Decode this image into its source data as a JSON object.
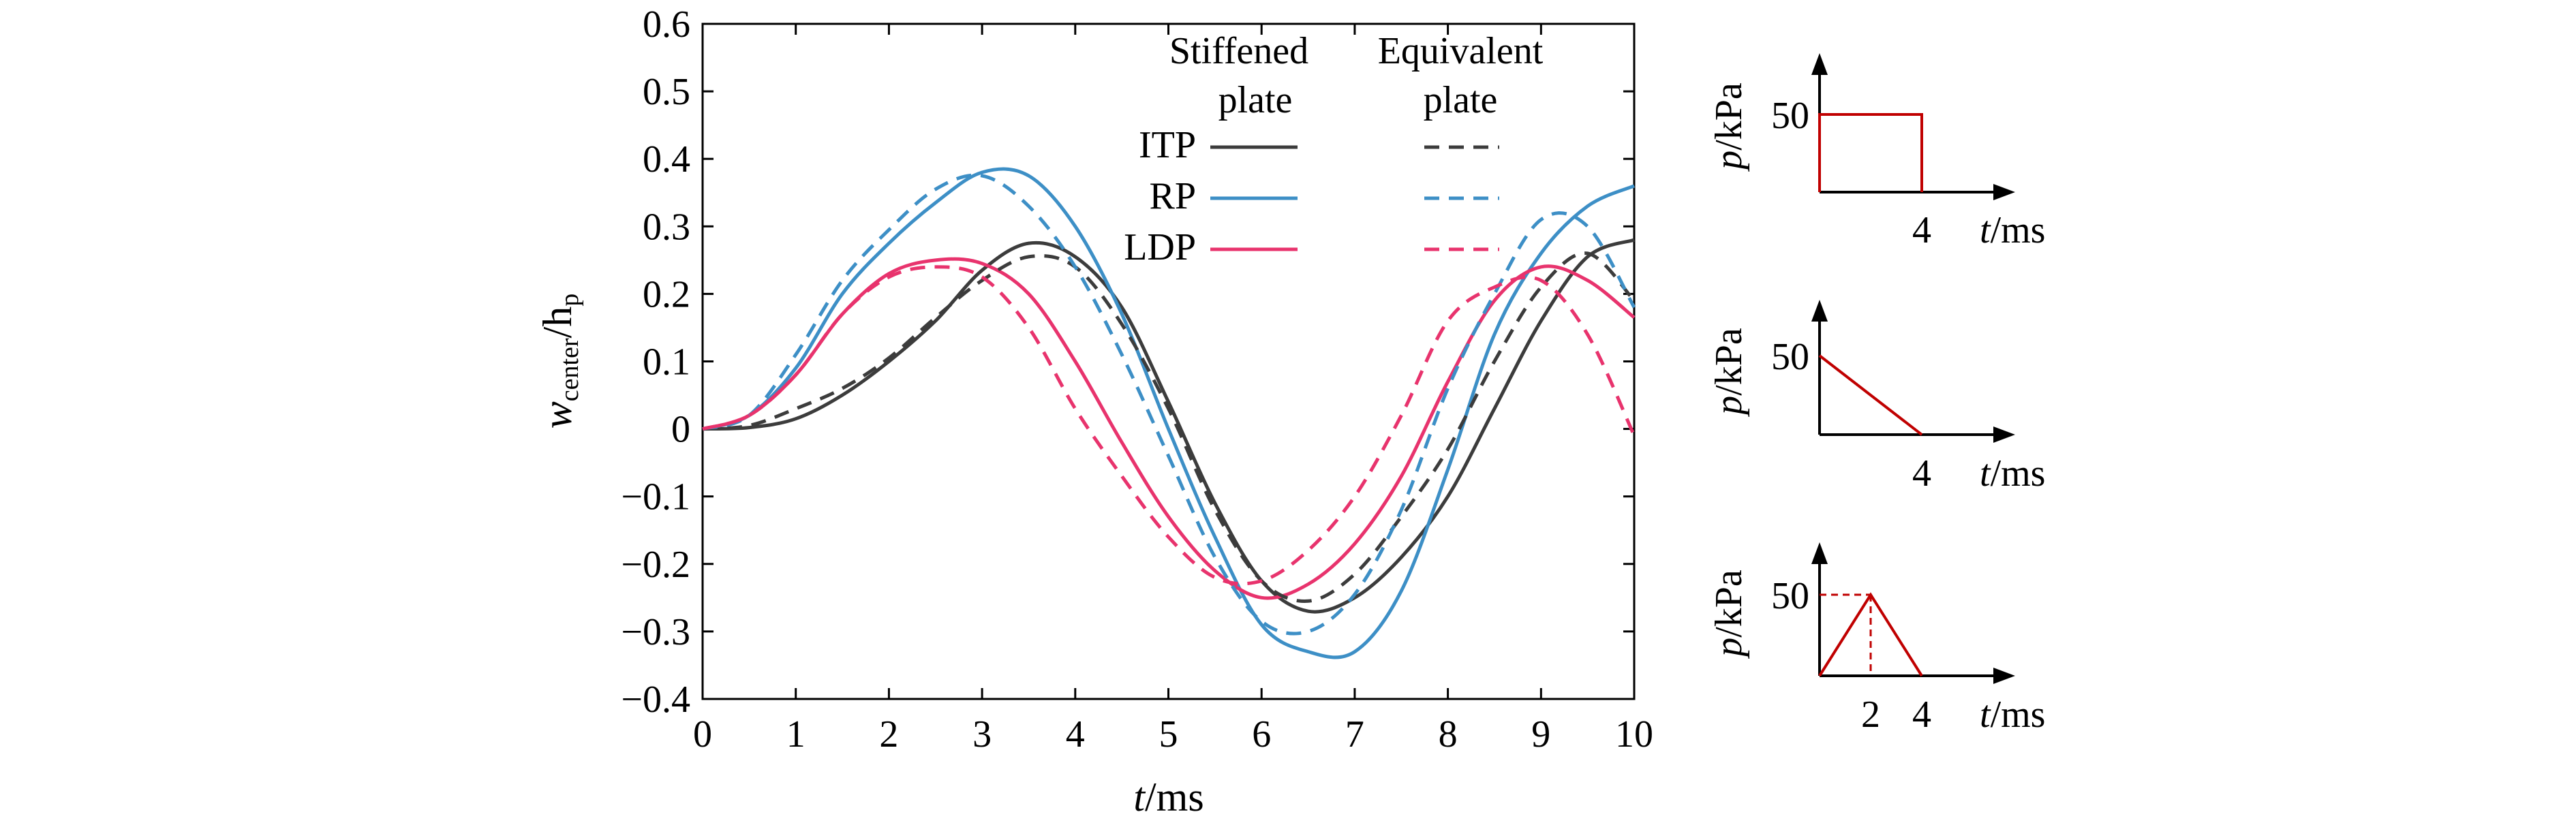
{
  "chart_data": [
    {
      "type": "line",
      "xlabel_var": "t",
      "xlabel_unit": "/ms",
      "ylabel_var": "w",
      "ylabel_sub1": "center",
      "ylabel_mid": "/h",
      "ylabel_sub2": "p",
      "xlim": [
        0,
        10
      ],
      "ylim": [
        -0.4,
        0.6
      ],
      "xticks": [
        0,
        1,
        2,
        3,
        4,
        5,
        6,
        7,
        8,
        9,
        10
      ],
      "yticks": [
        0.6,
        0.5,
        0.4,
        0.3,
        0.2,
        0.1,
        0,
        -0.1,
        -0.2,
        -0.3,
        -0.4
      ],
      "xtick_labels": [
        "0",
        "1",
        "2",
        "3",
        "4",
        "5",
        "6",
        "7",
        "8",
        "9",
        "10"
      ],
      "ytick_labels": [
        "0.6",
        "0.5",
        "0.4",
        "0.3",
        "0.2",
        "0.1",
        "0",
        "−0.1",
        "−0.2",
        "−0.3",
        "−0.4"
      ],
      "legend": {
        "col_headers": [
          [
            "Stiffened",
            "plate"
          ],
          [
            "Equivalent",
            "plate"
          ]
        ],
        "row_labels": [
          "ITP",
          "RP",
          "LDP"
        ]
      },
      "colors": {
        "ITP": "#3c3c3c",
        "RP": "#3d8fc6",
        "LDP": "#e8336d"
      },
      "series": [
        {
          "name": "ITP",
          "group": "Stiffened plate",
          "style": "solid",
          "color": "#3c3c3c",
          "x": [
            0,
            0.5,
            1,
            1.5,
            2,
            2.5,
            3,
            3.5,
            4,
            4.5,
            5,
            5.5,
            6,
            6.5,
            7,
            7.5,
            8,
            8.5,
            9,
            9.5,
            10
          ],
          "y": [
            0,
            0.002,
            0.015,
            0.05,
            0.1,
            0.16,
            0.235,
            0.275,
            0.255,
            0.18,
            0.04,
            -0.11,
            -0.225,
            -0.27,
            -0.25,
            -0.19,
            -0.1,
            0.03,
            0.16,
            0.255,
            0.28
          ]
        },
        {
          "name": "RP",
          "group": "Stiffened plate",
          "style": "solid",
          "color": "#3d8fc6",
          "x": [
            0,
            0.5,
            1,
            1.5,
            2,
            2.5,
            3,
            3.5,
            4,
            4.5,
            5,
            5.5,
            6,
            6.5,
            7,
            7.5,
            8,
            8.5,
            9,
            9.5,
            10
          ],
          "y": [
            0,
            0.02,
            0.09,
            0.2,
            0.275,
            0.335,
            0.38,
            0.375,
            0.3,
            0.17,
            0.0,
            -0.16,
            -0.29,
            -0.33,
            -0.33,
            -0.24,
            -0.06,
            0.14,
            0.26,
            0.33,
            0.36
          ]
        },
        {
          "name": "LDP",
          "group": "Stiffened plate",
          "style": "solid",
          "color": "#e8336d",
          "x": [
            0,
            0.5,
            1,
            1.5,
            2,
            2.5,
            3,
            3.5,
            4,
            4.5,
            5,
            5.5,
            6,
            6.5,
            7,
            7.5,
            8,
            8.5,
            9,
            9.5,
            10
          ],
          "y": [
            0,
            0.02,
            0.08,
            0.17,
            0.23,
            0.25,
            0.245,
            0.2,
            0.1,
            -0.02,
            -0.13,
            -0.21,
            -0.25,
            -0.23,
            -0.17,
            -0.07,
            0.07,
            0.19,
            0.24,
            0.22,
            0.165
          ]
        },
        {
          "name": "ITP",
          "group": "Equivalent plate",
          "style": "dashed",
          "color": "#3c3c3c",
          "x": [
            0,
            0.5,
            1,
            1.5,
            2,
            2.5,
            3,
            3.5,
            4,
            4.5,
            5,
            5.5,
            6,
            6.5,
            7,
            7.5,
            8,
            8.5,
            9,
            9.5,
            10
          ],
          "y": [
            0,
            0.005,
            0.03,
            0.06,
            0.105,
            0.165,
            0.22,
            0.255,
            0.24,
            0.155,
            0.03,
            -0.12,
            -0.225,
            -0.255,
            -0.215,
            -0.13,
            -0.03,
            0.1,
            0.21,
            0.26,
            0.19
          ]
        },
        {
          "name": "RP",
          "group": "Equivalent plate",
          "style": "dashed",
          "color": "#3d8fc6",
          "x": [
            0,
            0.5,
            1,
            1.5,
            2,
            2.5,
            3,
            3.5,
            4,
            4.5,
            5,
            5.5,
            6,
            6.5,
            7,
            7.5,
            8,
            8.5,
            9,
            9.5,
            10
          ],
          "y": [
            0,
            0.02,
            0.11,
            0.22,
            0.295,
            0.355,
            0.375,
            0.33,
            0.24,
            0.11,
            -0.04,
            -0.19,
            -0.285,
            -0.3,
            -0.245,
            -0.12,
            0.06,
            0.2,
            0.31,
            0.3,
            0.18
          ]
        },
        {
          "name": "LDP",
          "group": "Equivalent plate",
          "style": "dashed",
          "color": "#e8336d",
          "x": [
            0,
            0.5,
            1,
            1.5,
            2,
            2.5,
            3,
            3.5,
            4,
            4.5,
            5,
            5.5,
            6,
            6.5,
            7,
            7.5,
            8,
            8.5,
            9,
            9.5,
            10
          ],
          "y": [
            0,
            0.02,
            0.08,
            0.17,
            0.225,
            0.24,
            0.225,
            0.15,
            0.03,
            -0.07,
            -0.16,
            -0.22,
            -0.225,
            -0.18,
            -0.1,
            0.02,
            0.16,
            0.21,
            0.22,
            0.14,
            -0.01
          ]
        }
      ]
    },
    {
      "type": "line",
      "subtype": "load-profile-rectangular",
      "xlabel_var": "t",
      "xlabel_unit": "/ms",
      "ylabel_var": "p",
      "ylabel_unit": "/kPa",
      "y_tick": "50",
      "x_ticks": [
        "4"
      ],
      "color": "#c00000",
      "series": [
        {
          "x": [
            0,
            0,
            4,
            4
          ],
          "y": [
            0,
            50,
            50,
            0
          ]
        }
      ]
    },
    {
      "type": "line",
      "subtype": "load-profile-decaying",
      "xlabel_var": "t",
      "xlabel_unit": "/ms",
      "ylabel_var": "p",
      "ylabel_unit": "/kPa",
      "y_tick": "50",
      "x_ticks": [
        "4"
      ],
      "color": "#c00000",
      "series": [
        {
          "x": [
            0,
            4
          ],
          "y": [
            50,
            0
          ]
        }
      ]
    },
    {
      "type": "line",
      "subtype": "load-profile-triangular",
      "xlabel_var": "t",
      "xlabel_unit": "/ms",
      "ylabel_var": "p",
      "ylabel_unit": "/kPa",
      "y_tick": "50",
      "x_ticks": [
        "2",
        "4"
      ],
      "color": "#c00000",
      "series": [
        {
          "x": [
            0,
            2,
            4
          ],
          "y": [
            0,
            50,
            0
          ]
        }
      ]
    }
  ]
}
